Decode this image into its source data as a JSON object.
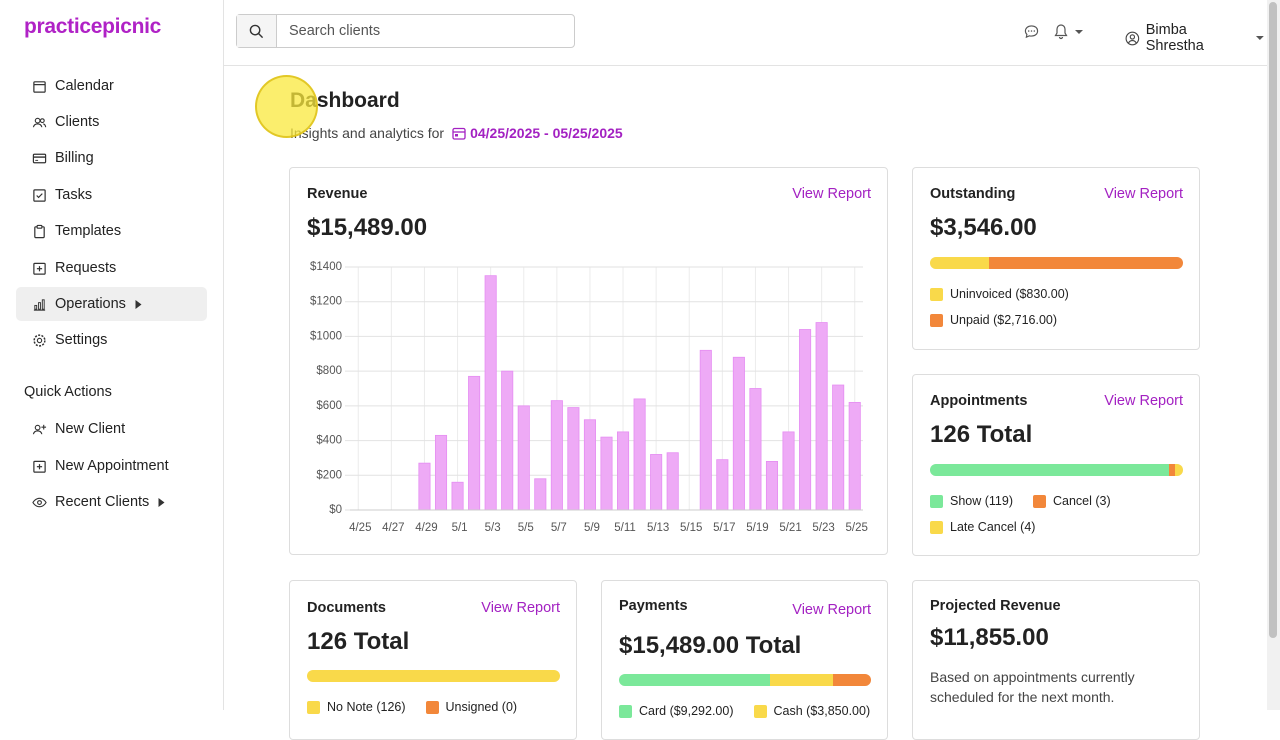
{
  "sidebar": {
    "logo": "practicepicnic",
    "nav": [
      "Calendar",
      "Clients",
      "Billing",
      "Tasks",
      "Templates",
      "Requests",
      "Operations",
      "Settings"
    ],
    "quick_actions_title": "Quick Actions",
    "quick_actions": [
      "New Client",
      "New Appointment",
      "Recent Clients"
    ]
  },
  "topbar": {
    "search_placeholder": "Search clients",
    "user": "Bimba Shrestha"
  },
  "header": {
    "title": "Dashboard",
    "subtitle": "Insights and analytics for",
    "date_range": "04/25/2025 - 05/25/2025"
  },
  "revenue": {
    "title": "Revenue",
    "link": "View Report",
    "total": "$15,489.00"
  },
  "chart_data": {
    "type": "bar",
    "categories": [
      "4/25",
      null,
      "4/27",
      null,
      "4/29",
      null,
      "5/1",
      null,
      "5/3",
      null,
      "5/5",
      null,
      "5/7",
      null,
      "5/9",
      null,
      "5/11",
      null,
      "5/13",
      null,
      "5/15",
      null,
      "5/17",
      null,
      "5/19",
      null,
      "5/21",
      null,
      "5/23",
      null,
      "5/25"
    ],
    "values": [
      0,
      0,
      0,
      0,
      270,
      430,
      160,
      770,
      1350,
      800,
      600,
      180,
      630,
      590,
      520,
      420,
      450,
      640,
      320,
      330,
      0,
      920,
      290,
      880,
      700,
      280,
      450,
      1040,
      1080,
      720,
      620
    ],
    "color": "#eeaaf6",
    "ylim": [
      0,
      1400
    ],
    "yticks": [
      {
        "value": 0,
        "label": "$0"
      },
      {
        "value": 200,
        "label": "$200"
      },
      {
        "value": 400,
        "label": "$400"
      },
      {
        "value": 600,
        "label": "$600"
      },
      {
        "value": 800,
        "label": "$800"
      },
      {
        "value": 1000,
        "label": "$1000"
      },
      {
        "value": 1200,
        "label": "$1200"
      },
      {
        "value": 1400,
        "label": "$1400"
      }
    ],
    "grid": true
  },
  "outstanding": {
    "title": "Outstanding",
    "link": "View Report",
    "total": "$3,546.00",
    "segments": [
      {
        "label": "Uninvoiced ($830.00)",
        "value": 830,
        "color": "#f9d94a"
      },
      {
        "label": "Unpaid ($2,716.00)",
        "value": 2716,
        "color": "#f2873a"
      }
    ]
  },
  "appointments": {
    "title": "Appointments",
    "link": "View Report",
    "total": "126 Total",
    "segments": [
      {
        "label": "Show (119)",
        "value": 119,
        "color": "#7be89a"
      },
      {
        "label": "Cancel (3)",
        "value": 3,
        "color": "#f2873a"
      },
      {
        "label": "Late Cancel (4)",
        "value": 4,
        "color": "#f9d94a"
      }
    ]
  },
  "documents": {
    "title": "Documents",
    "link": "View Report",
    "total": "126 Total",
    "segments": [
      {
        "label": "No Note (126)",
        "value": 126,
        "color": "#f9d94a"
      },
      {
        "label": "Unsigned (0)",
        "value": 0,
        "color": "#f2873a"
      }
    ]
  },
  "payments": {
    "title": "Payments",
    "link": "View Report",
    "total": "$15,489.00 Total",
    "segments": [
      {
        "label": "Card ($9,292.00)",
        "value": 9292,
        "color": "#7be89a"
      },
      {
        "label": "Cash ($3,850.00)",
        "value": 3850,
        "color": "#f9d94a"
      },
      {
        "value": 2347,
        "color": "#f2873a"
      }
    ]
  },
  "projected": {
    "title": "Projected Revenue",
    "total": "$11,855.00",
    "note": "Based on appointments currently scheduled for the next month."
  }
}
